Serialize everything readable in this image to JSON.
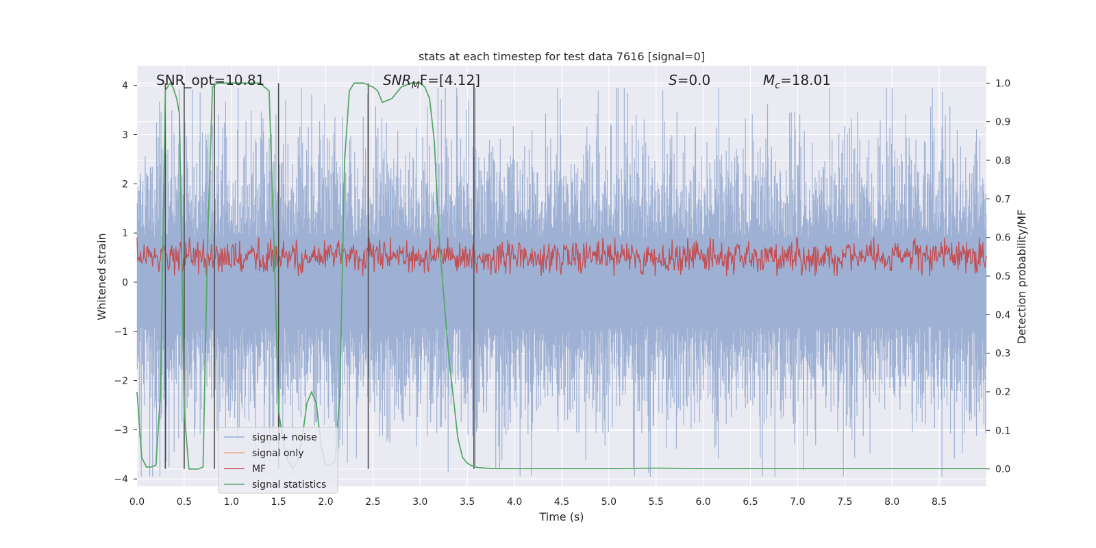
{
  "chart_data": {
    "type": "line",
    "title": "stats at each timestep for test data 7616 [signal=0]",
    "xlabel": "Time (s)",
    "ylabel_left": "Whitened strain",
    "ylabel_right": "Detection probability/MF",
    "xlim": [
      0.0,
      9.0
    ],
    "ylim_left": [
      -4.15,
      4.4
    ],
    "ylim_right": [
      -0.045,
      1.045
    ],
    "x_ticks": [
      "0.0",
      "0.5",
      "1.0",
      "1.5",
      "2.0",
      "2.5",
      "3.0",
      "3.5",
      "4.0",
      "4.5",
      "5.0",
      "5.5",
      "6.0",
      "6.5",
      "7.0",
      "7.5",
      "8.0",
      "8.5"
    ],
    "y_ticks_left": [
      "4",
      "3",
      "2",
      "1",
      "0",
      "−1",
      "−2",
      "−3",
      "−4"
    ],
    "y_ticks_right": [
      "1.0",
      "0.9",
      "0.8",
      "0.7",
      "0.6",
      "0.5",
      "0.4",
      "0.3",
      "0.2",
      "0.1",
      "0.0"
    ],
    "annotations": {
      "snr_opt": "SNR_opt=10.81",
      "snr_mf_sym": "SNR",
      "snr_mf_sub": "M",
      "snr_mf_rest": "F=[4.12]",
      "s_sym": "S",
      "s_rest": "=0.0",
      "mc_sym": "M",
      "mc_sub": "c",
      "mc_rest": "=18.01"
    },
    "series": [
      {
        "name": "signal+ noise",
        "color": "#9aaed2",
        "axis": "left",
        "description": "whitened strain noise, amplitude ~±2.5, peaks to ±4"
      },
      {
        "name": "signal only",
        "color": "#f0a58a",
        "axis": "left",
        "values": []
      },
      {
        "name": "MF",
        "color": "#c44e52",
        "axis": "right",
        "description": "matched filter output, ~0.5 to 0.6"
      },
      {
        "name": "signal statistics",
        "color": "#55a868",
        "axis": "right",
        "x": [
          0.0,
          0.05,
          0.1,
          0.15,
          0.2,
          0.25,
          0.3,
          0.35,
          0.38,
          0.42,
          0.45,
          0.5,
          0.55,
          0.6,
          0.65,
          0.7,
          0.75,
          0.8,
          0.85,
          0.9,
          0.95,
          1.0,
          1.1,
          1.2,
          1.3,
          1.4,
          1.45,
          1.5,
          1.55,
          1.6,
          1.65,
          1.7,
          1.75,
          1.8,
          1.85,
          1.9,
          1.95,
          2.0,
          2.05,
          2.1,
          2.15,
          2.2,
          2.25,
          2.3,
          2.35,
          2.4,
          2.45,
          2.5,
          2.55,
          2.6,
          2.7,
          2.8,
          2.9,
          3.0,
          3.05,
          3.1,
          3.15,
          3.2,
          3.3,
          3.4,
          3.45,
          3.5,
          3.55,
          3.6,
          3.65,
          3.7,
          3.75,
          3.8,
          3.85,
          3.9,
          3.95,
          4.0,
          4.1,
          4.2,
          4.5,
          5.0,
          5.5,
          6.0,
          6.3,
          6.4,
          6.5,
          7.0,
          7.5,
          8.0,
          8.5,
          9.0
        ],
        "values": [
          0.2,
          0.03,
          0.005,
          0.005,
          0.01,
          0.2,
          0.98,
          1.0,
          0.99,
          0.96,
          0.92,
          0.15,
          0.0,
          0.0,
          0.0,
          0.005,
          0.6,
          0.99,
          1.0,
          1.0,
          1.0,
          1.0,
          1.0,
          1.0,
          1.0,
          0.98,
          0.6,
          0.15,
          0.07,
          0.02,
          0.0,
          0.02,
          0.08,
          0.17,
          0.2,
          0.17,
          0.06,
          0.01,
          0.01,
          0.02,
          0.2,
          0.8,
          0.98,
          1.0,
          1.0,
          1.0,
          0.995,
          0.99,
          0.98,
          0.95,
          0.96,
          0.99,
          1.0,
          1.0,
          0.99,
          0.96,
          0.85,
          0.6,
          0.3,
          0.08,
          0.03,
          0.015,
          0.008,
          0.004,
          0.003,
          0.002,
          0.0015,
          0.001,
          0.001,
          0.001,
          0.001,
          0.001,
          0.001,
          0.001,
          0.001,
          0.001,
          0.002,
          0.001,
          0.001,
          0.001,
          0.001,
          0.001,
          0.001,
          0.001,
          0.001,
          0.001
        ]
      },
      {
        "name": "detection markers",
        "color": "#4a4a4a",
        "type": "vlines",
        "x": [
          0.3,
          0.5,
          0.82,
          1.5,
          2.45,
          3.57
        ]
      }
    ],
    "legend": {
      "placement": "lower-left",
      "entries": [
        "signal+ noise",
        "signal only",
        "MF",
        "signal statistics"
      ]
    },
    "grid": true
  }
}
